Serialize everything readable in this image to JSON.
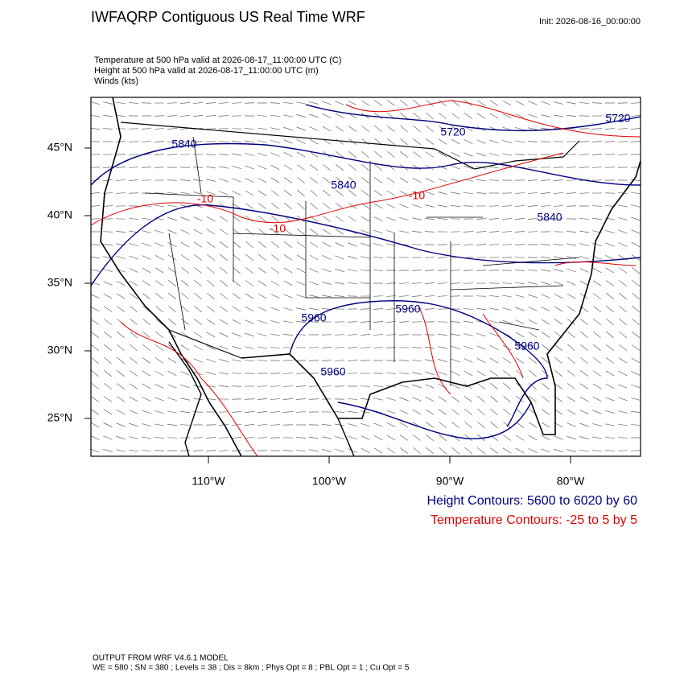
{
  "header": {
    "title": "IWFAQRP Contiguous US Real Time WRF",
    "init": "Init: 2026-08-16_00:00:00"
  },
  "fields": [
    "Temperature at 500 hPa valid at 2026-08-17_11:00:00 UTC   (C)",
    "Height at 500 hPa valid at 2026-08-17_11:00:00 UTC   (m)",
    "Winds   (kts)"
  ],
  "map": {
    "lat_labels": [
      "45°N",
      "40°N",
      "35°N",
      "30°N",
      "25°N"
    ],
    "lon_labels": [
      "110°W",
      "100°W",
      "90°W",
      "80°W"
    ],
    "height_labels": [
      "5840",
      "5840",
      "5840",
      "5720",
      "5720",
      "5960",
      "5960",
      "5960",
      "5960"
    ],
    "temp_labels": [
      "-10",
      "-10",
      "-10"
    ]
  },
  "legend": {
    "height": "Height Contours: 5600 to 6020 by 60",
    "temperature": "Temperature Contours: -25 to 5 by 5"
  },
  "footer": [
    "OUTPUT FROM WRF V4.6.1 MODEL",
    "WE = 580 ; SN = 380 ; Levels = 38 ; Dis = 8km ; Phys Opt = 8 ; PBL Opt = 1 ; Cu Opt = 5"
  ]
}
